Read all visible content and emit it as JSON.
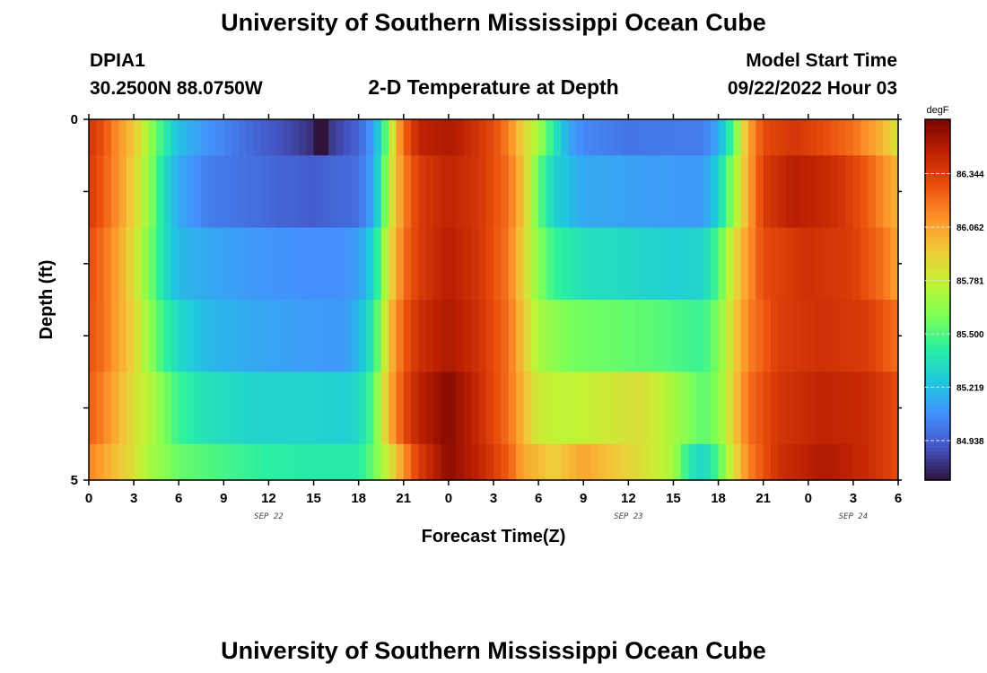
{
  "title": "University of Southern Mississippi Ocean Cube",
  "footer_title": "University of Southern Mississippi Ocean Cube",
  "station": {
    "id": "DPIA1",
    "coords": "30.2500N  88.0750W"
  },
  "subtitle": "2-D Temperature at Depth",
  "model_start": {
    "label": "Model Start Time",
    "value": "09/22/2022 Hour 03"
  },
  "chart_data": {
    "type": "heatmap",
    "title": "2-D Temperature at Depth",
    "xlabel": "Forecast Time(Z)",
    "ylabel": "Depth (ft)",
    "x_hours_from_sep22_00z": [
      0,
      54
    ],
    "x_tick_labels": [
      "0",
      "3",
      "6",
      "9",
      "12",
      "15",
      "18",
      "21",
      "0",
      "3",
      "6",
      "9",
      "12",
      "15",
      "18",
      "21",
      "0",
      "3",
      "6"
    ],
    "date_labels": [
      {
        "label": "SEP 22",
        "hour": 12
      },
      {
        "label": "SEP 23",
        "hour": 36
      },
      {
        "label": "SEP 24",
        "hour": 51
      }
    ],
    "y_tick_labels": [
      "0",
      "5"
    ],
    "ylim": [
      0,
      5
    ],
    "colorbar": {
      "unit": "degF",
      "ticks": [
        "86.344",
        "86.062",
        "85.781",
        "85.500",
        "85.219",
        "84.938"
      ],
      "range": [
        84.73,
        86.63
      ],
      "colors": [
        "#30123b",
        "#4454c4",
        "#4490fe",
        "#1fc8de",
        "#29efa2",
        "#7dff56",
        "#c1f334",
        "#f1ca3a",
        "#fe922a",
        "#ea4f0d",
        "#be2102",
        "#7a0403"
      ]
    },
    "depth_rows": [
      {
        "depth": 0.25,
        "label": "0-0.5",
        "profile": [
          [
            0,
            86.38
          ],
          [
            1,
            86.28
          ],
          [
            2,
            86.1
          ],
          [
            3,
            85.95
          ],
          [
            4,
            85.68
          ],
          [
            5,
            85.42
          ],
          [
            6,
            85.22
          ],
          [
            8,
            85.08
          ],
          [
            10,
            85.0
          ],
          [
            12,
            84.92
          ],
          [
            14,
            84.85
          ],
          [
            15,
            84.8
          ],
          [
            15.3,
            84.6
          ],
          [
            15.7,
            84.6
          ],
          [
            16,
            84.82
          ],
          [
            18,
            84.95
          ],
          [
            19,
            85.12
          ],
          [
            19.5,
            85.35
          ],
          [
            20,
            85.65
          ],
          [
            20.5,
            86.0
          ],
          [
            21,
            86.22
          ],
          [
            22,
            86.45
          ],
          [
            24,
            86.5
          ],
          [
            25,
            86.45
          ],
          [
            26,
            86.38
          ],
          [
            27,
            86.3
          ],
          [
            28,
            86.15
          ],
          [
            29,
            85.9
          ],
          [
            30,
            85.7
          ],
          [
            31,
            85.4
          ],
          [
            32,
            85.15
          ],
          [
            33,
            85.05
          ],
          [
            36,
            85.0
          ],
          [
            41,
            85.02
          ],
          [
            42,
            85.15
          ],
          [
            43,
            85.5
          ],
          [
            43.5,
            85.8
          ],
          [
            44,
            86.05
          ],
          [
            45,
            86.3
          ],
          [
            47,
            86.38
          ],
          [
            49,
            86.3
          ],
          [
            51,
            86.2
          ],
          [
            53,
            86.0
          ],
          [
            54,
            85.82
          ]
        ]
      },
      {
        "depth": 0.75,
        "label": "0.5-1.5",
        "profile": [
          [
            0,
            86.36
          ],
          [
            1,
            86.25
          ],
          [
            2,
            86.1
          ],
          [
            3,
            85.9
          ],
          [
            4,
            85.65
          ],
          [
            5,
            85.35
          ],
          [
            6,
            85.15
          ],
          [
            8,
            85.02
          ],
          [
            11,
            84.98
          ],
          [
            13,
            84.95
          ],
          [
            15,
            84.93
          ],
          [
            18,
            84.98
          ],
          [
            19,
            85.15
          ],
          [
            19.5,
            85.4
          ],
          [
            20,
            85.75
          ],
          [
            21,
            86.15
          ],
          [
            22,
            86.35
          ],
          [
            24,
            86.45
          ],
          [
            26,
            86.38
          ],
          [
            28,
            86.2
          ],
          [
            29,
            85.95
          ],
          [
            30,
            85.55
          ],
          [
            31,
            85.3
          ],
          [
            33,
            85.15
          ],
          [
            36,
            85.13
          ],
          [
            41,
            85.1
          ],
          [
            42,
            85.3
          ],
          [
            43,
            85.65
          ],
          [
            44,
            86.05
          ],
          [
            45,
            86.35
          ],
          [
            47,
            86.48
          ],
          [
            50,
            86.4
          ],
          [
            52,
            86.25
          ],
          [
            54,
            86.0
          ]
        ]
      },
      {
        "depth": 1.75,
        "label": "1.5-2.5",
        "profile": [
          [
            0,
            86.3
          ],
          [
            1,
            86.2
          ],
          [
            2,
            86.05
          ],
          [
            3,
            85.85
          ],
          [
            4,
            85.6
          ],
          [
            5,
            85.35
          ],
          [
            6,
            85.2
          ],
          [
            8,
            85.15
          ],
          [
            11,
            85.1
          ],
          [
            14,
            85.08
          ],
          [
            17,
            85.08
          ],
          [
            18,
            85.12
          ],
          [
            19,
            85.3
          ],
          [
            19.5,
            85.55
          ],
          [
            20,
            85.85
          ],
          [
            21,
            86.2
          ],
          [
            22,
            86.35
          ],
          [
            24,
            86.48
          ],
          [
            26,
            86.38
          ],
          [
            28,
            86.18
          ],
          [
            29,
            85.9
          ],
          [
            30,
            85.62
          ],
          [
            31,
            85.45
          ],
          [
            33,
            85.35
          ],
          [
            36,
            85.32
          ],
          [
            39,
            85.28
          ],
          [
            41,
            85.3
          ],
          [
            42,
            85.5
          ],
          [
            43,
            85.85
          ],
          [
            44,
            86.1
          ],
          [
            45,
            86.3
          ],
          [
            48,
            86.4
          ],
          [
            51,
            86.35
          ],
          [
            53,
            86.2
          ],
          [
            54,
            86.05
          ]
        ]
      },
      {
        "depth": 2.75,
        "label": "2.5-3.5",
        "profile": [
          [
            0,
            86.28
          ],
          [
            1,
            86.2
          ],
          [
            2,
            86.05
          ],
          [
            3,
            85.9
          ],
          [
            4,
            85.65
          ],
          [
            5,
            85.45
          ],
          [
            6,
            85.32
          ],
          [
            8,
            85.2
          ],
          [
            11,
            85.15
          ],
          [
            14,
            85.12
          ],
          [
            17,
            85.1
          ],
          [
            18,
            85.2
          ],
          [
            19,
            85.4
          ],
          [
            19.5,
            85.65
          ],
          [
            20,
            85.95
          ],
          [
            21,
            86.25
          ],
          [
            22,
            86.4
          ],
          [
            24,
            86.5
          ],
          [
            26,
            86.4
          ],
          [
            28,
            86.2
          ],
          [
            29,
            85.95
          ],
          [
            30,
            85.7
          ],
          [
            32,
            85.58
          ],
          [
            35,
            85.55
          ],
          [
            38,
            85.52
          ],
          [
            41,
            85.45
          ],
          [
            42,
            85.6
          ],
          [
            43,
            85.9
          ],
          [
            44,
            86.15
          ],
          [
            46,
            86.35
          ],
          [
            49,
            86.4
          ],
          [
            52,
            86.35
          ],
          [
            54,
            86.2
          ]
        ]
      },
      {
        "depth": 3.75,
        "label": "3.5-4.5",
        "profile": [
          [
            0,
            86.25
          ],
          [
            1,
            86.15
          ],
          [
            2,
            86.0
          ],
          [
            3,
            85.85
          ],
          [
            4,
            85.75
          ],
          [
            5,
            85.6
          ],
          [
            6,
            85.45
          ],
          [
            8,
            85.35
          ],
          [
            11,
            85.3
          ],
          [
            14,
            85.3
          ],
          [
            17,
            85.28
          ],
          [
            18,
            85.32
          ],
          [
            19,
            85.5
          ],
          [
            19.5,
            85.75
          ],
          [
            20,
            86.0
          ],
          [
            21,
            86.3
          ],
          [
            22,
            86.45
          ],
          [
            24,
            86.6
          ],
          [
            26,
            86.42
          ],
          [
            28,
            86.2
          ],
          [
            29,
            86.0
          ],
          [
            30,
            85.8
          ],
          [
            32,
            85.75
          ],
          [
            35,
            85.82
          ],
          [
            37,
            85.85
          ],
          [
            39,
            85.7
          ],
          [
            41,
            85.52
          ],
          [
            42,
            85.62
          ],
          [
            43,
            85.92
          ],
          [
            44,
            86.2
          ],
          [
            46,
            86.38
          ],
          [
            49,
            86.45
          ],
          [
            52,
            86.42
          ],
          [
            54,
            86.3
          ]
        ]
      },
      {
        "depth": 4.75,
        "label": "4.5-5",
        "profile": [
          [
            0,
            86.15
          ],
          [
            1,
            86.05
          ],
          [
            2,
            85.95
          ],
          [
            3,
            85.85
          ],
          [
            4,
            85.7
          ],
          [
            6,
            85.55
          ],
          [
            9,
            85.48
          ],
          [
            12,
            85.42
          ],
          [
            15,
            85.4
          ],
          [
            18,
            85.4
          ],
          [
            19,
            85.55
          ],
          [
            20,
            85.8
          ],
          [
            21,
            86.1
          ],
          [
            22,
            86.35
          ],
          [
            24,
            86.58
          ],
          [
            26,
            86.45
          ],
          [
            28,
            86.25
          ],
          [
            29,
            86.05
          ],
          [
            31,
            85.92
          ],
          [
            33,
            86.05
          ],
          [
            35,
            85.95
          ],
          [
            37,
            85.85
          ],
          [
            39,
            85.7
          ],
          [
            40,
            85.4
          ],
          [
            41,
            85.3
          ],
          [
            42,
            85.5
          ],
          [
            43,
            85.85
          ],
          [
            44,
            86.15
          ],
          [
            46,
            86.4
          ],
          [
            49,
            86.5
          ],
          [
            52,
            86.42
          ],
          [
            54,
            86.3
          ]
        ]
      }
    ]
  }
}
